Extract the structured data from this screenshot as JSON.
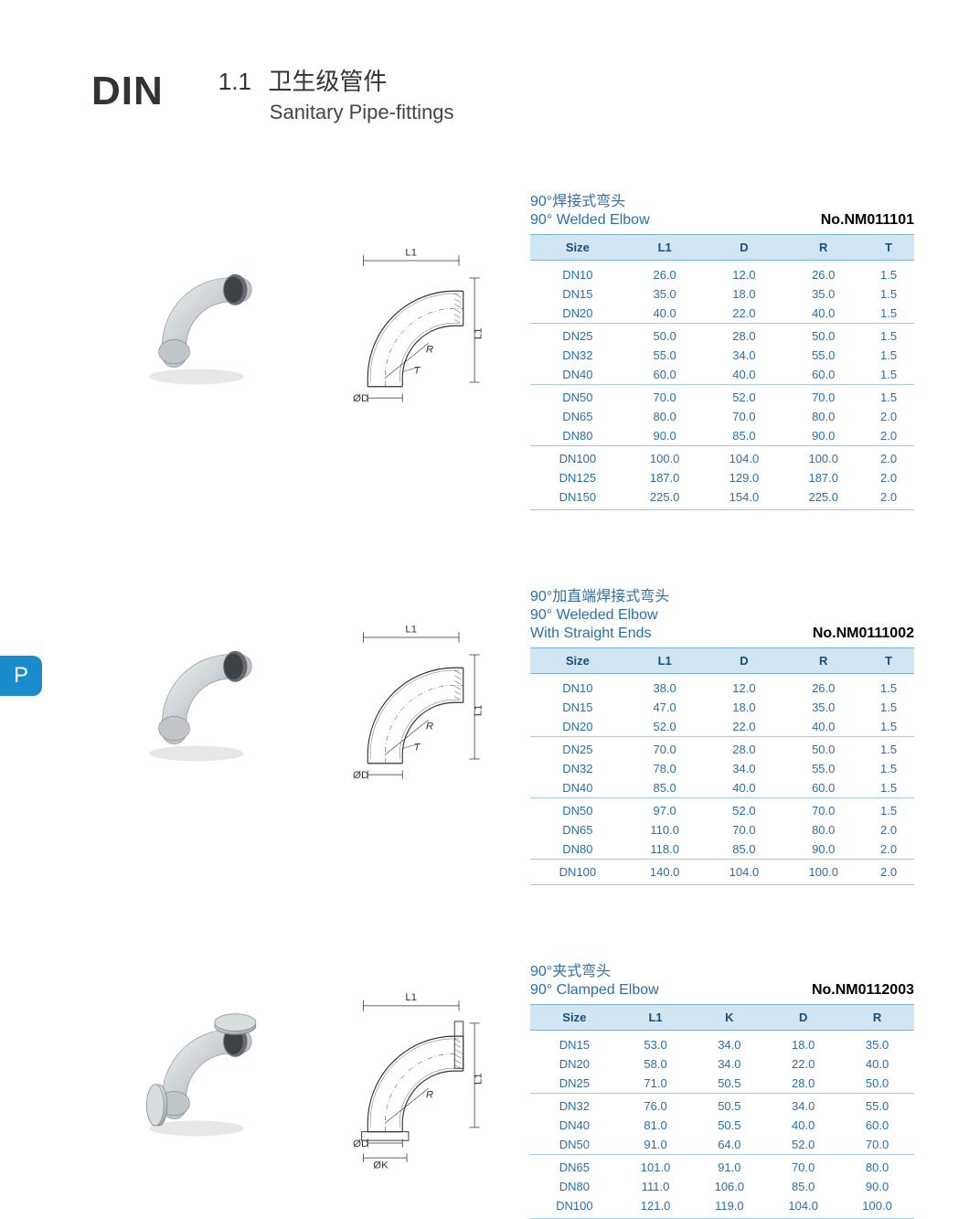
{
  "header": {
    "din": "DIN",
    "section_num": "1.1",
    "title_cn": "卫生级管件",
    "title_en": "Sanitary Pipe-fittings"
  },
  "side_tab": "P",
  "colors": {
    "accent": "#1a8bcb",
    "caption": "#2b6fa8",
    "header_bg": "#d1e5f2",
    "header_border": "#7fb3d5",
    "row_border": "#a6c8de"
  },
  "products": [
    {
      "id": "welded-elbow",
      "caption_cn": "90°焊接式弯头",
      "caption_en": "90° Welded Elbow",
      "caption_sub": "",
      "part_no": "No.NM011101",
      "photo_type": "plain",
      "dia_labels": {
        "L1": "L1",
        "OD": "ØD",
        "R": "R",
        "T": "T",
        "L1v": "L1"
      },
      "columns": [
        "Size",
        "L1",
        "D",
        "R",
        "T"
      ],
      "groups": [
        [
          [
            "DN10",
            "26.0",
            "12.0",
            "26.0",
            "1.5"
          ],
          [
            "DN15",
            "35.0",
            "18.0",
            "35.0",
            "1.5"
          ],
          [
            "DN20",
            "40.0",
            "22.0",
            "40.0",
            "1.5"
          ]
        ],
        [
          [
            "DN25",
            "50.0",
            "28.0",
            "50.0",
            "1.5"
          ],
          [
            "DN32",
            "55.0",
            "34.0",
            "55.0",
            "1.5"
          ],
          [
            "DN40",
            "60.0",
            "40.0",
            "60.0",
            "1.5"
          ]
        ],
        [
          [
            "DN50",
            "70.0",
            "52.0",
            "70.0",
            "1.5"
          ],
          [
            "DN65",
            "80.0",
            "70.0",
            "80.0",
            "2.0"
          ],
          [
            "DN80",
            "90.0",
            "85.0",
            "90.0",
            "2.0"
          ]
        ],
        [
          [
            "DN100",
            "100.0",
            "104.0",
            "100.0",
            "2.0"
          ],
          [
            "DN125",
            "187.0",
            "129.0",
            "187.0",
            "2.0"
          ],
          [
            "DN150",
            "225.0",
            "154.0",
            "225.0",
            "2.0"
          ]
        ]
      ]
    },
    {
      "id": "welded-elbow-straight",
      "caption_cn": "90°加直端焊接式弯头",
      "caption_en": "90° Weleded Elbow",
      "caption_sub": "With Straight Ends",
      "part_no": "No.NM0111002",
      "photo_type": "plain",
      "dia_labels": {
        "L1": "L1",
        "OD": "ØD",
        "R": "R",
        "T": "T",
        "L1v": "L1"
      },
      "columns": [
        "Size",
        "L1",
        "D",
        "R",
        "T"
      ],
      "groups": [
        [
          [
            "DN10",
            "38.0",
            "12.0",
            "26.0",
            "1.5"
          ],
          [
            "DN15",
            "47.0",
            "18.0",
            "35.0",
            "1.5"
          ],
          [
            "DN20",
            "52.0",
            "22.0",
            "40.0",
            "1.5"
          ]
        ],
        [
          [
            "DN25",
            "70.0",
            "28.0",
            "50.0",
            "1.5"
          ],
          [
            "DN32",
            "78.0",
            "34.0",
            "55.0",
            "1.5"
          ],
          [
            "DN40",
            "85.0",
            "40.0",
            "60.0",
            "1.5"
          ]
        ],
        [
          [
            "DN50",
            "97.0",
            "52.0",
            "70.0",
            "1.5"
          ],
          [
            "DN65",
            "110.0",
            "70.0",
            "80.0",
            "2.0"
          ],
          [
            "DN80",
            "118.0",
            "85.0",
            "90.0",
            "2.0"
          ]
        ],
        [
          [
            "DN100",
            "140.0",
            "104.0",
            "100.0",
            "2.0"
          ]
        ]
      ]
    },
    {
      "id": "clamped-elbow",
      "caption_cn": "90°夹式弯头",
      "caption_en": "90° Clamped Elbow",
      "caption_sub": "",
      "part_no": "No.NM0112003",
      "photo_type": "clamped",
      "dia_labels": {
        "L1": "L1",
        "OD": "ØD",
        "OK": "ØK",
        "R": "R",
        "L1v": "L1"
      },
      "columns": [
        "Size",
        "L1",
        "K",
        "D",
        "R"
      ],
      "groups": [
        [
          [
            "DN15",
            "53.0",
            "34.0",
            "18.0",
            "35.0"
          ],
          [
            "DN20",
            "58.0",
            "34.0",
            "22.0",
            "40.0"
          ],
          [
            "DN25",
            "71.0",
            "50.5",
            "28.0",
            "50.0"
          ]
        ],
        [
          [
            "DN32",
            "76.0",
            "50.5",
            "34.0",
            "55.0"
          ],
          [
            "DN40",
            "81.0",
            "50.5",
            "40.0",
            "60.0"
          ],
          [
            "DN50",
            "91.0",
            "64.0",
            "52.0",
            "70.0"
          ]
        ],
        [
          [
            "DN65",
            "101.0",
            "91.0",
            "70.0",
            "80.0"
          ],
          [
            "DN80",
            "111.0",
            "106.0",
            "85.0",
            "90.0"
          ],
          [
            "DN100",
            "121.0",
            "119.0",
            "104.0",
            "100.0"
          ]
        ]
      ]
    }
  ]
}
